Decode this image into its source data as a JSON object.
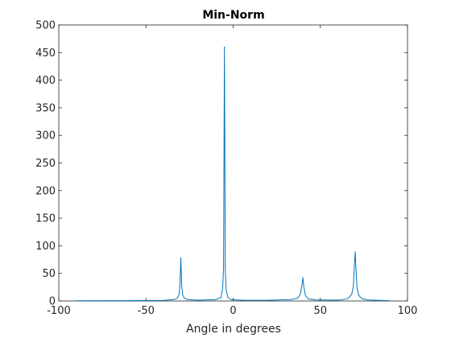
{
  "chart_data": {
    "type": "line",
    "title": "Min-Norm",
    "xlabel": "Angle in degrees",
    "ylabel": "",
    "xlim": [
      -100,
      100
    ],
    "ylim": [
      0,
      500
    ],
    "xticks": [
      -100,
      -50,
      0,
      50,
      100
    ],
    "yticks": [
      0,
      50,
      100,
      150,
      200,
      250,
      300,
      350,
      400,
      450,
      500
    ],
    "grid": false,
    "series": [
      {
        "color": "#0072BD",
        "peaks": [
          {
            "x": -30,
            "y": 78
          },
          {
            "x": -5,
            "y": 460
          },
          {
            "x": 40,
            "y": 42
          },
          {
            "x": 70,
            "y": 89
          }
        ],
        "x": [
          -90,
          -60,
          -40,
          -34,
          -32,
          -31,
          -30.5,
          -30,
          -29.5,
          -29,
          -28,
          -26,
          -20,
          -10,
          -7,
          -6,
          -5.5,
          -5,
          -4.5,
          -4,
          -3,
          -1,
          0,
          1,
          5,
          20,
          33,
          37,
          38.5,
          39.5,
          40,
          40.5,
          41.5,
          43,
          47,
          60,
          64,
          66,
          68,
          69,
          69.5,
          70,
          70.5,
          71,
          72,
          74,
          77,
          80,
          90
        ],
        "y": [
          0.4,
          0.6,
          1.0,
          2.5,
          5,
          12,
          30,
          78,
          28,
          11,
          5,
          2.5,
          1.5,
          2.5,
          6,
          24,
          60,
          460,
          55,
          20,
          6,
          2,
          2.5,
          2,
          1.5,
          1.2,
          2.5,
          5,
          12,
          30,
          42,
          26,
          10,
          4,
          2,
          1.5,
          3,
          5,
          12,
          28,
          62,
          89,
          55,
          25,
          10,
          4,
          2,
          1.5,
          0.5
        ]
      }
    ]
  }
}
